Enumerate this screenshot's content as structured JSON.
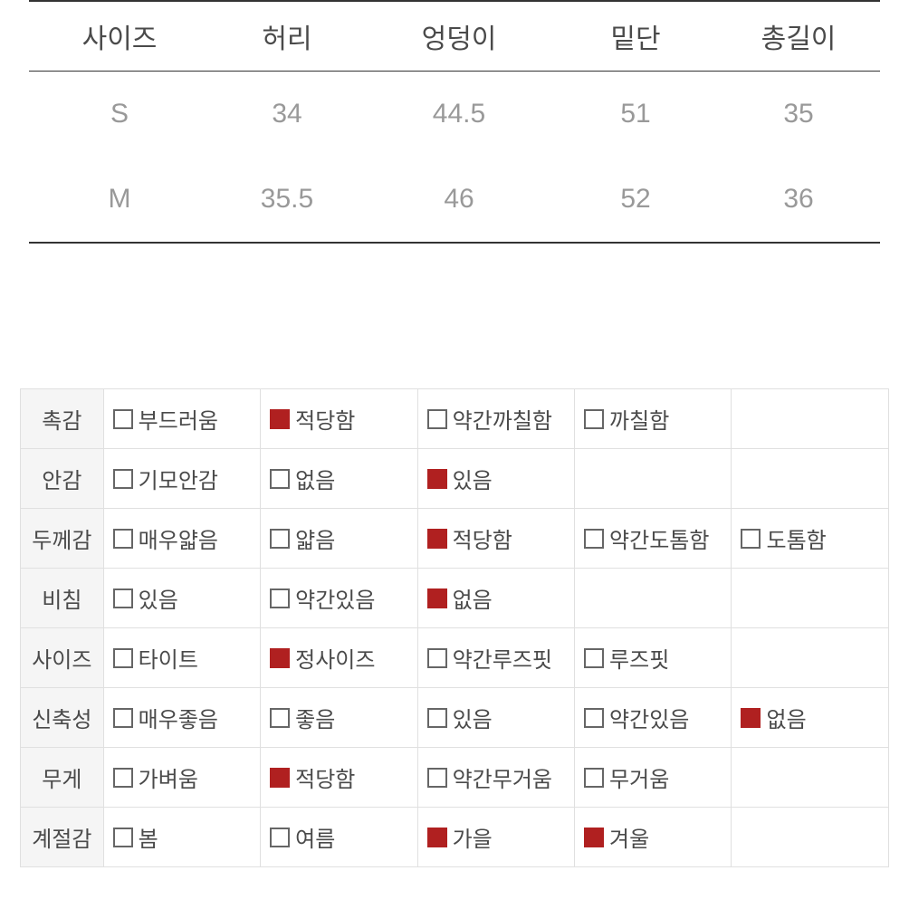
{
  "sizeTable": {
    "columns": [
      "사이즈",
      "허리",
      "엉덩이",
      "밑단",
      "총길이"
    ],
    "rows": [
      [
        "S",
        "34",
        "44.5",
        "51",
        "35"
      ],
      [
        "M",
        "35.5",
        "46",
        "52",
        "36"
      ]
    ],
    "colWidths": [
      "200px",
      "170px",
      "210px",
      "180px",
      "180px"
    ],
    "headerColor": "#4a4a4a",
    "cellColor": "#999999",
    "borderColor": "#333333",
    "fontSize": 30
  },
  "detailTable": {
    "labelBg": "#f5f5f5",
    "borderColor": "#e0e0e0",
    "textColor": "#4a4a4a",
    "checkboxBorder": "#666666",
    "checkedColor": "#b02020",
    "fontSize": 24,
    "rows": [
      {
        "label": "촉감",
        "options": [
          {
            "text": "부드러움",
            "checked": false
          },
          {
            "text": "적당함",
            "checked": true
          },
          {
            "text": "약간까칠함",
            "checked": false
          },
          {
            "text": "까칠함",
            "checked": false
          },
          {
            "text": "",
            "checked": null
          }
        ]
      },
      {
        "label": "안감",
        "options": [
          {
            "text": "기모안감",
            "checked": false
          },
          {
            "text": "없음",
            "checked": false
          },
          {
            "text": "있음",
            "checked": true
          },
          {
            "text": "",
            "checked": null
          },
          {
            "text": "",
            "checked": null
          }
        ]
      },
      {
        "label": "두께감",
        "options": [
          {
            "text": "매우얇음",
            "checked": false
          },
          {
            "text": "얇음",
            "checked": false
          },
          {
            "text": "적당함",
            "checked": true
          },
          {
            "text": "약간도톰함",
            "checked": false
          },
          {
            "text": "도톰함",
            "checked": false
          }
        ]
      },
      {
        "label": "비침",
        "options": [
          {
            "text": "있음",
            "checked": false
          },
          {
            "text": "약간있음",
            "checked": false
          },
          {
            "text": "없음",
            "checked": true
          },
          {
            "text": "",
            "checked": null
          },
          {
            "text": "",
            "checked": null
          }
        ]
      },
      {
        "label": "사이즈",
        "options": [
          {
            "text": "타이트",
            "checked": false
          },
          {
            "text": "정사이즈",
            "checked": true
          },
          {
            "text": "약간루즈핏",
            "checked": false
          },
          {
            "text": "루즈핏",
            "checked": false
          },
          {
            "text": "",
            "checked": null
          }
        ]
      },
      {
        "label": "신축성",
        "options": [
          {
            "text": "매우좋음",
            "checked": false
          },
          {
            "text": "좋음",
            "checked": false
          },
          {
            "text": "있음",
            "checked": false
          },
          {
            "text": "약간있음",
            "checked": false
          },
          {
            "text": "없음",
            "checked": true
          }
        ]
      },
      {
        "label": "무게",
        "options": [
          {
            "text": "가벼움",
            "checked": false
          },
          {
            "text": "적당함",
            "checked": true
          },
          {
            "text": "약간무거움",
            "checked": false
          },
          {
            "text": "무거움",
            "checked": false
          },
          {
            "text": "",
            "checked": null
          }
        ]
      },
      {
        "label": "계절감",
        "options": [
          {
            "text": "봄",
            "checked": false
          },
          {
            "text": "여름",
            "checked": false
          },
          {
            "text": "가을",
            "checked": true
          },
          {
            "text": "겨울",
            "checked": true
          },
          {
            "text": "",
            "checked": null
          }
        ]
      }
    ]
  }
}
